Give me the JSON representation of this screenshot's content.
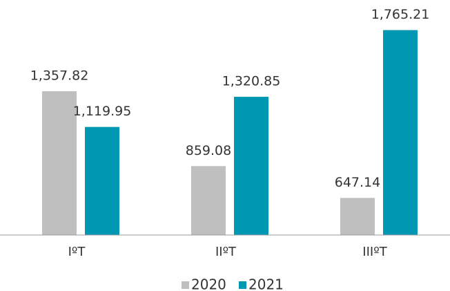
{
  "chart_data": {
    "type": "bar",
    "categories": [
      "IºT",
      "IIºT",
      "IIIºT"
    ],
    "series": [
      {
        "name": "2020",
        "color": "#bfbfbf",
        "values": [
          1357.82,
          859.08,
          647.14
        ],
        "value_labels": [
          "1,357.82",
          "859.08",
          "647.14"
        ]
      },
      {
        "name": "2021",
        "color": "#0097b2",
        "values": [
          1119.95,
          1320.85,
          1765.21
        ],
        "value_labels": [
          "1,119.95",
          "1,320.85",
          "1,765.21"
        ]
      }
    ],
    "ylim": [
      400,
      1800
    ],
    "legend": "bottom"
  }
}
